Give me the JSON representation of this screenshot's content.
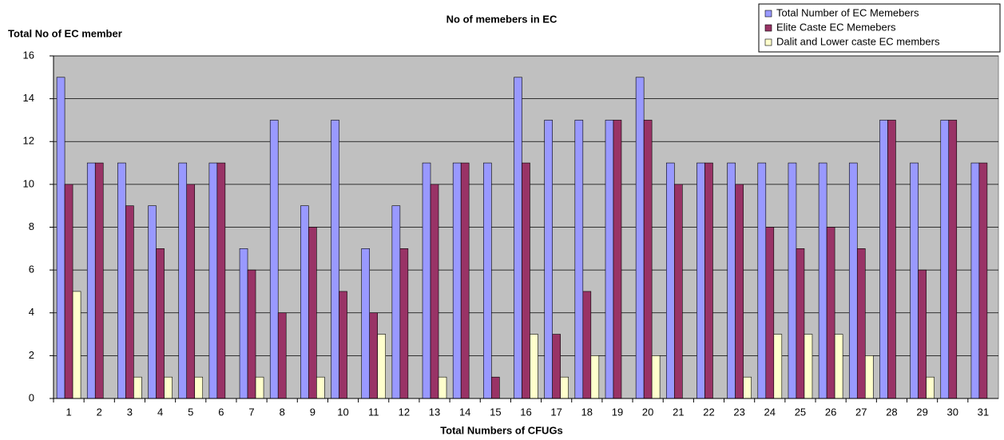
{
  "chart_data": {
    "type": "bar",
    "title": "No of memebers in EC",
    "y_label": "Total No of EC member",
    "x_label": "Total Numbers of CFUGs",
    "categories": [
      "1",
      "2",
      "3",
      "4",
      "5",
      "6",
      "7",
      "8",
      "9",
      "10",
      "11",
      "12",
      "13",
      "14",
      "15",
      "16",
      "17",
      "18",
      "19",
      "20",
      "21",
      "22",
      "23",
      "24",
      "25",
      "26",
      "27",
      "28",
      "29",
      "30",
      "31"
    ],
    "series": [
      {
        "name": "Total Number of EC Memebers",
        "color": "#9999ff",
        "values": [
          15,
          11,
          11,
          9,
          11,
          11,
          7,
          13,
          9,
          13,
          7,
          9,
          11,
          11,
          11,
          15,
          13,
          13,
          13,
          15,
          11,
          11,
          11,
          11,
          11,
          11,
          11,
          13,
          11,
          13,
          11
        ]
      },
      {
        "name": "Elite Caste  EC Memebers",
        "color": "#993366",
        "values": [
          10,
          11,
          9,
          7,
          10,
          11,
          6,
          4,
          8,
          5,
          4,
          7,
          10,
          11,
          1,
          11,
          3,
          5,
          13,
          13,
          10,
          11,
          10,
          8,
          7,
          8,
          7,
          13,
          6,
          13,
          11
        ]
      },
      {
        "name": "Dalit and Lower caste EC members",
        "color": "#ffffcc",
        "values": [
          5,
          0,
          1,
          1,
          1,
          0,
          1,
          0,
          1,
          0,
          3,
          0,
          1,
          0,
          0,
          3,
          1,
          2,
          0,
          2,
          0,
          0,
          1,
          3,
          3,
          3,
          2,
          0,
          1,
          0,
          0
        ]
      }
    ],
    "ylim": [
      0,
      16
    ],
    "yticks": [
      0,
      2,
      4,
      6,
      8,
      10,
      12,
      14,
      16
    ],
    "grid": true,
    "legend": "top-right",
    "background": "#c0c0c0"
  }
}
